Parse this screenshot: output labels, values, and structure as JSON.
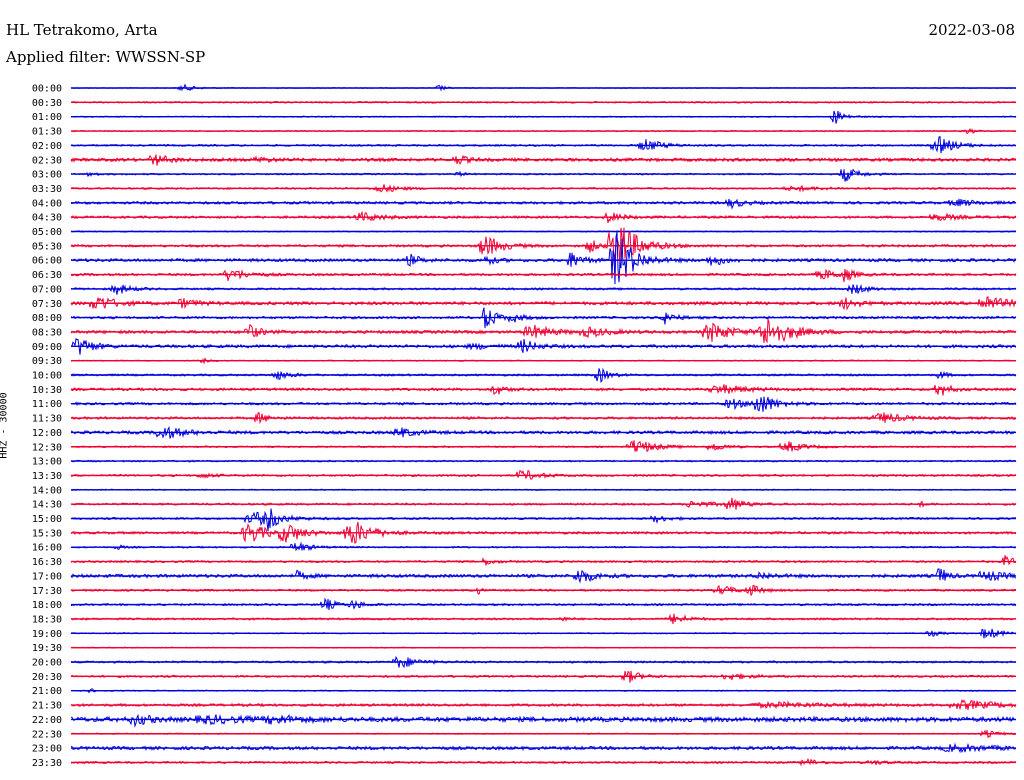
{
  "header": {
    "station": "HL Tetrakomo, Arta",
    "filter": "Applied filter: WWSSN-SP",
    "date": "2022-03-08"
  },
  "channel_label": "HHZ - 30000",
  "chart_data": {
    "type": "line",
    "chart_kind": "helicorder",
    "title": "HL Tetrakomo, Arta",
    "subtitle": "Applied filter: WWSSN-SP",
    "date": "2022-03-08",
    "ylabel": "HHZ - 30000",
    "xlabel": "",
    "minutes_per_line": 30,
    "colors": [
      "#0000dd",
      "#ee0033"
    ],
    "grid": false,
    "legend": "none",
    "rows": [
      {
        "time": "00:00",
        "noise": 0.4,
        "events": [
          [
            0.12,
            3,
            0.02
          ],
          [
            0.39,
            3,
            0.01
          ]
        ]
      },
      {
        "time": "00:30",
        "noise": 0.8,
        "events": []
      },
      {
        "time": "01:00",
        "noise": 0.6,
        "events": [
          [
            0.81,
            7,
            0.015
          ]
        ]
      },
      {
        "time": "01:30",
        "noise": 0.6,
        "events": [
          [
            0.95,
            3,
            0.01
          ]
        ]
      },
      {
        "time": "02:00",
        "noise": 0.9,
        "events": [
          [
            0.61,
            6,
            0.025
          ],
          [
            0.92,
            8,
            0.025
          ]
        ]
      },
      {
        "time": "02:30",
        "noise": 1.6,
        "events": [
          [
            0.09,
            5,
            0.02
          ],
          [
            0.41,
            4,
            0.015
          ],
          [
            0.2,
            2,
            0.02
          ]
        ]
      },
      {
        "time": "03:00",
        "noise": 0.8,
        "events": [
          [
            0.82,
            7,
            0.02
          ],
          [
            0.02,
            2,
            0.01
          ],
          [
            0.41,
            2,
            0.01
          ]
        ]
      },
      {
        "time": "03:30",
        "noise": 0.9,
        "events": [
          [
            0.33,
            4,
            0.025
          ],
          [
            0.77,
            2,
            0.04
          ]
        ]
      },
      {
        "time": "04:00",
        "noise": 1.3,
        "events": [
          [
            0.7,
            4,
            0.02
          ],
          [
            0.94,
            3,
            0.03
          ]
        ]
      },
      {
        "time": "04:30",
        "noise": 1.2,
        "events": [
          [
            0.31,
            4,
            0.03
          ],
          [
            0.57,
            5,
            0.02
          ],
          [
            0.92,
            3,
            0.03
          ]
        ]
      },
      {
        "time": "05:00",
        "noise": 0.6,
        "events": []
      },
      {
        "time": "05:30",
        "noise": 1.2,
        "events": [
          [
            0.44,
            10,
            0.025
          ],
          [
            0.55,
            6,
            0.015
          ],
          [
            0.58,
            25,
            0.03
          ]
        ]
      },
      {
        "time": "06:00",
        "noise": 1.5,
        "events": [
          [
            0.36,
            5,
            0.015
          ],
          [
            0.44,
            4,
            0.015
          ],
          [
            0.53,
            7,
            0.02
          ],
          [
            0.58,
            28,
            0.025
          ],
          [
            0.68,
            5,
            0.02
          ]
        ]
      },
      {
        "time": "06:30",
        "noise": 1.2,
        "events": [
          [
            0.17,
            6,
            0.025
          ],
          [
            0.8,
            4,
            0.03
          ],
          [
            0.82,
            6,
            0.01
          ]
        ]
      },
      {
        "time": "07:00",
        "noise": 1.0,
        "events": [
          [
            0.05,
            5,
            0.02
          ],
          [
            0.83,
            5,
            0.02
          ]
        ]
      },
      {
        "time": "07:30",
        "noise": 1.6,
        "events": [
          [
            0.03,
            7,
            0.025
          ],
          [
            0.12,
            4,
            0.02
          ],
          [
            0.82,
            5,
            0.02
          ],
          [
            0.97,
            7,
            0.03
          ]
        ]
      },
      {
        "time": "08:00",
        "noise": 1.2,
        "events": [
          [
            0.44,
            12,
            0.015
          ],
          [
            0.47,
            3,
            0.02
          ],
          [
            0.63,
            6,
            0.015
          ]
        ]
      },
      {
        "time": "08:30",
        "noise": 1.5,
        "events": [
          [
            0.19,
            7,
            0.015
          ],
          [
            0.49,
            6,
            0.03
          ],
          [
            0.55,
            4,
            0.03
          ],
          [
            0.68,
            9,
            0.03
          ],
          [
            0.74,
            14,
            0.035
          ]
        ]
      },
      {
        "time": "09:00",
        "noise": 1.5,
        "events": [
          [
            0.01,
            9,
            0.02
          ],
          [
            0.48,
            6,
            0.02
          ],
          [
            0.43,
            2,
            0.03
          ]
        ]
      },
      {
        "time": "09:30",
        "noise": 0.6,
        "events": [
          [
            0.14,
            2,
            0.01
          ]
        ]
      },
      {
        "time": "10:00",
        "noise": 1.0,
        "events": [
          [
            0.22,
            4,
            0.02
          ],
          [
            0.56,
            7,
            0.015
          ],
          [
            0.92,
            4,
            0.01
          ]
        ]
      },
      {
        "time": "10:30",
        "noise": 1.3,
        "events": [
          [
            0.45,
            5,
            0.015
          ],
          [
            0.69,
            4,
            0.04
          ],
          [
            0.92,
            7,
            0.015
          ]
        ]
      },
      {
        "time": "11:00",
        "noise": 1.2,
        "events": [
          [
            0.7,
            5,
            0.02
          ],
          [
            0.73,
            10,
            0.025
          ]
        ]
      },
      {
        "time": "11:30",
        "noise": 1.2,
        "events": [
          [
            0.2,
            5,
            0.015
          ],
          [
            0.86,
            5,
            0.03
          ]
        ]
      },
      {
        "time": "12:00",
        "noise": 1.5,
        "events": [
          [
            0.1,
            6,
            0.03
          ],
          [
            0.35,
            4,
            0.025
          ]
        ]
      },
      {
        "time": "12:30",
        "noise": 0.8,
        "events": [
          [
            0.6,
            7,
            0.03
          ],
          [
            0.68,
            4,
            0.02
          ],
          [
            0.76,
            5,
            0.025
          ]
        ]
      },
      {
        "time": "13:00",
        "noise": 0.8,
        "events": []
      },
      {
        "time": "13:30",
        "noise": 1.0,
        "events": [
          [
            0.48,
            5,
            0.025
          ],
          [
            0.14,
            2,
            0.02
          ]
        ]
      },
      {
        "time": "14:00",
        "noise": 0.6,
        "events": []
      },
      {
        "time": "14:30",
        "noise": 1.0,
        "events": [
          [
            0.66,
            3,
            0.03
          ],
          [
            0.7,
            6,
            0.02
          ],
          [
            0.9,
            2,
            0.01
          ]
        ]
      },
      {
        "time": "15:00",
        "noise": 1.0,
        "events": [
          [
            0.2,
            6,
            0.04
          ],
          [
            0.21,
            9,
            0.01
          ],
          [
            0.62,
            3,
            0.02
          ]
        ]
      },
      {
        "time": "15:30",
        "noise": 1.2,
        "events": [
          [
            0.19,
            10,
            0.025
          ],
          [
            0.23,
            9,
            0.025
          ],
          [
            0.3,
            12,
            0.03
          ]
        ]
      },
      {
        "time": "16:00",
        "noise": 0.8,
        "events": [
          [
            0.24,
            5,
            0.02
          ],
          [
            0.05,
            2,
            0.01
          ]
        ]
      },
      {
        "time": "16:30",
        "noise": 1.0,
        "events": [
          [
            0.44,
            3,
            0.015
          ],
          [
            0.99,
            7,
            0.01
          ]
        ]
      },
      {
        "time": "17:00",
        "noise": 1.6,
        "events": [
          [
            0.24,
            4,
            0.015
          ],
          [
            0.54,
            7,
            0.02
          ],
          [
            0.73,
            3,
            0.02
          ],
          [
            0.92,
            9,
            0.01
          ],
          [
            0.97,
            4,
            0.03
          ]
        ]
      },
      {
        "time": "17:30",
        "noise": 1.0,
        "events": [
          [
            0.43,
            5,
            0.005
          ],
          [
            0.69,
            4,
            0.025
          ],
          [
            0.72,
            5,
            0.015
          ]
        ]
      },
      {
        "time": "18:00",
        "noise": 1.0,
        "events": [
          [
            0.27,
            6,
            0.015
          ],
          [
            0.3,
            4,
            0.015
          ]
        ]
      },
      {
        "time": "18:30",
        "noise": 1.0,
        "events": [
          [
            0.64,
            5,
            0.02
          ],
          [
            0.52,
            2,
            0.01
          ]
        ]
      },
      {
        "time": "19:00",
        "noise": 0.6,
        "events": [
          [
            0.91,
            3,
            0.015
          ],
          [
            0.97,
            6,
            0.02
          ]
        ]
      },
      {
        "time": "19:30",
        "noise": 0.5,
        "events": []
      },
      {
        "time": "20:00",
        "noise": 1.0,
        "events": [
          [
            0.35,
            6,
            0.025
          ]
        ]
      },
      {
        "time": "20:30",
        "noise": 1.0,
        "events": [
          [
            0.59,
            6,
            0.02
          ],
          [
            0.7,
            3,
            0.03
          ]
        ]
      },
      {
        "time": "21:00",
        "noise": 0.6,
        "events": [
          [
            0.02,
            3,
            0.005
          ]
        ]
      },
      {
        "time": "21:30",
        "noise": 1.3,
        "events": [
          [
            0.95,
            4,
            0.05
          ],
          [
            0.75,
            2,
            0.08
          ]
        ]
      },
      {
        "time": "22:00",
        "noise": 2.3,
        "events": [
          [
            0.07,
            5,
            0.02
          ],
          [
            0.15,
            3,
            0.05
          ],
          [
            0.22,
            3,
            0.04
          ]
        ]
      },
      {
        "time": "22:30",
        "noise": 0.6,
        "events": [
          [
            0.97,
            3,
            0.02
          ]
        ]
      },
      {
        "time": "23:00",
        "noise": 1.6,
        "events": [
          [
            0.94,
            3,
            0.05
          ]
        ]
      },
      {
        "time": "23:30",
        "noise": 1.0,
        "events": [
          [
            0.78,
            3,
            0.02
          ],
          [
            0.85,
            2,
            0.02
          ]
        ]
      }
    ]
  }
}
